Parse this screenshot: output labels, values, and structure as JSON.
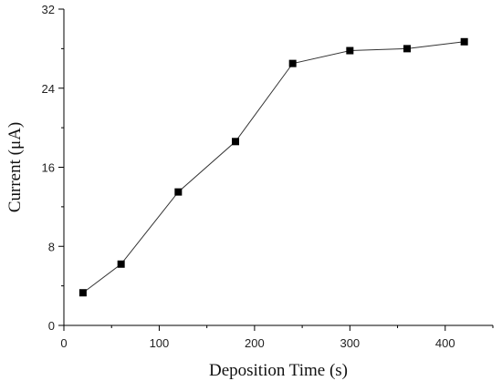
{
  "chart_data": {
    "type": "line",
    "title": "",
    "xlabel": "Deposition Time (s)",
    "ylabel": "Current (μA)",
    "xlim": [
      0,
      450
    ],
    "ylim": [
      0,
      32
    ],
    "x_ticks": [
      "0",
      "100",
      "200",
      "300",
      "400"
    ],
    "x_tick_values": [
      0,
      100,
      200,
      300,
      400
    ],
    "y_ticks": [
      "0",
      "8",
      "16",
      "24",
      "32"
    ],
    "y_tick_values": [
      0,
      8,
      16,
      24,
      32
    ],
    "grid": false,
    "marker": "square",
    "series": [
      {
        "x": [
          20,
          60,
          120,
          180,
          240,
          300,
          360,
          420
        ],
        "y": [
          3.3,
          6.2,
          13.5,
          18.6,
          26.5,
          27.8,
          28.0,
          28.7
        ]
      }
    ]
  }
}
